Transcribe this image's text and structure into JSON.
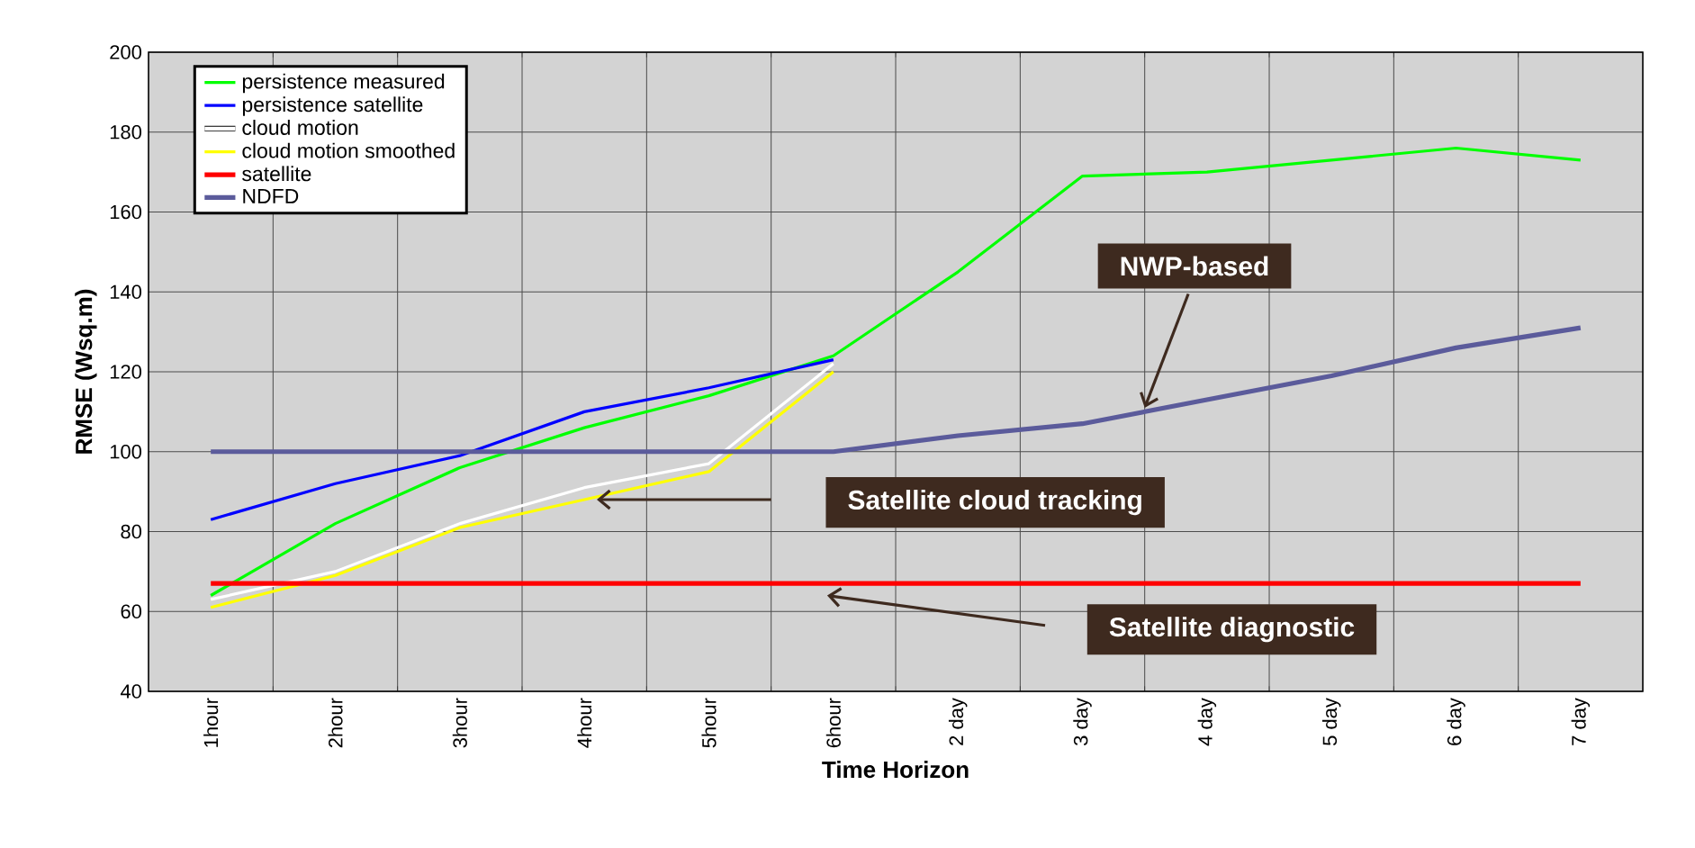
{
  "chart_data": {
    "type": "line",
    "xlabel": "Time Horizon",
    "ylabel": "RMSE (Wsq.m)",
    "categories": [
      "1hour",
      "2hour",
      "3hour",
      "4hour",
      "5hour",
      "6hour",
      "2 day",
      "3 day",
      "4 day",
      "5 day",
      "6 day",
      "7 day"
    ],
    "series": [
      {
        "name": "persistence measured",
        "color": "#00ff00",
        "values": [
          64,
          82,
          96,
          106,
          114,
          124,
          145,
          169,
          170,
          173,
          176,
          173
        ]
      },
      {
        "name": "persistence satellite",
        "color": "#0000ff",
        "values": [
          83,
          92,
          99,
          110,
          116,
          123,
          null,
          null,
          null,
          null,
          null,
          null
        ]
      },
      {
        "name": "cloud motion",
        "color": "#ffffff",
        "values": [
          63,
          70,
          82,
          91,
          97,
          122,
          null,
          null,
          null,
          null,
          null,
          null
        ]
      },
      {
        "name": "cloud motion smoothed",
        "color": "#ffff00",
        "values": [
          61,
          69,
          81,
          88,
          95,
          120,
          null,
          null,
          null,
          null,
          null,
          null
        ]
      },
      {
        "name": "satellite",
        "color": "#ff0000",
        "values": [
          67,
          67,
          67,
          67,
          67,
          67,
          67,
          67,
          67,
          67,
          67,
          67
        ]
      },
      {
        "name": "NDFD",
        "color": "#5b5b9b",
        "values": [
          100,
          100,
          100,
          100,
          100,
          100,
          104,
          107,
          113,
          119,
          126,
          131
        ]
      }
    ],
    "ylim": [
      40,
      200
    ],
    "yticks": [
      40,
      60,
      80,
      100,
      120,
      140,
      160,
      180,
      200
    ],
    "grid": true,
    "legend": "top left",
    "line_style": "solid",
    "annotations": [
      "NWP-based",
      "Satellite cloud tracking",
      "Satellite diagnostic"
    ]
  }
}
